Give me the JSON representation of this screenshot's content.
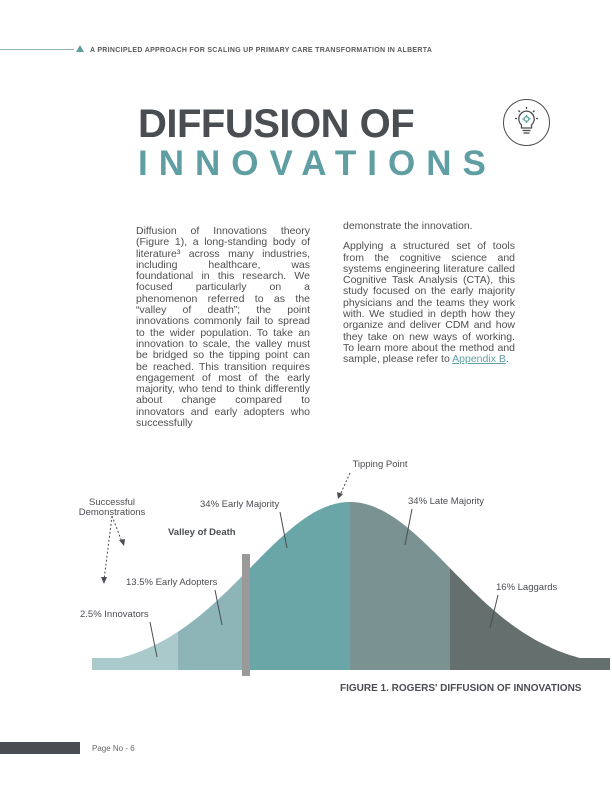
{
  "header": {
    "text": "A PRINCIPLED APPROACH FOR SCALING UP PRIMARY CARE TRANSFORMATION IN ALBERTA"
  },
  "title": {
    "line1": "DIFFUSION OF",
    "line2": "INNOVATIONS"
  },
  "icon": {
    "name": "lightbulb-gears-icon"
  },
  "body": {
    "col1_text": "Diffusion of Innovations theory (Figure 1), a long-standing body of literature³ across many industries, including healthcare, was foundational in this research. We focused particularly on a phenomenon referred to as the “valley of death”; the point innovations commonly fail to spread to the wider population. To take an innovation to scale, the valley must be bridged so the tipping point can be reached. This transition requires engagement of most of the early majority, who tend to think differently about change compared to innovators and early adopters who successfully",
    "col2_p1": "demonstrate the innovation.",
    "col2_p2": "Applying a structured set of tools from the cognitive science and systems engineering literature called Cognitive Task Analysis (CTA), this study focused on the early majority physicians and the teams they work with. We studied in depth how they organize and deliver CDM and how they take on new ways of working. To learn more about the method and sample, please refer to ",
    "col2_link": "Appendix B",
    "col2_end": "."
  },
  "chart_data": {
    "type": "area",
    "title": "FIGURE 1. ROGERS' DIFFUSION OF INNOVATIONS",
    "categories": [
      "2.5% Innovators",
      "13.5% Early Adopters",
      "34% Early Majority",
      "34% Late Majority",
      "16% Laggards"
    ],
    "values": [
      2.5,
      13.5,
      34,
      34,
      16
    ],
    "colors": [
      "#a9c9cb",
      "#8db5b8",
      "#6aa6a8",
      "#7a9392",
      "#646f6e"
    ],
    "annotations": [
      "Tipping Point",
      "Valley of Death",
      "Successful Demonstrations"
    ]
  },
  "footer": {
    "page": "Page No - 6"
  }
}
